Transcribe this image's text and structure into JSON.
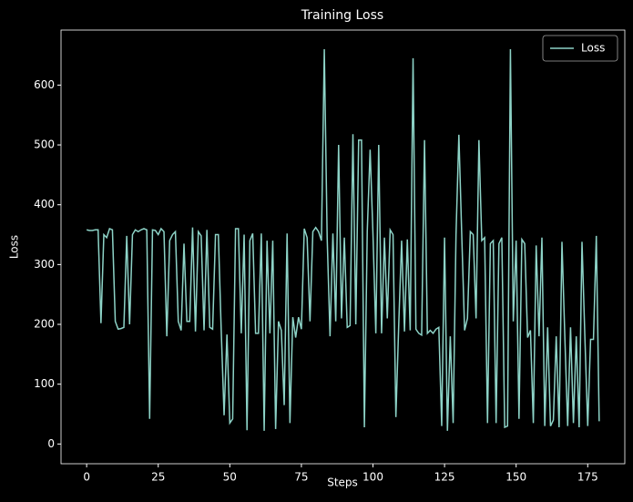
{
  "chart_data": {
    "type": "line",
    "title": "Training Loss",
    "x_label": "Steps",
    "y_label": "Loss",
    "x": [
      0,
      1,
      2,
      3,
      4,
      5,
      6,
      7,
      8,
      9,
      10,
      11,
      12,
      13,
      14,
      15,
      16,
      17,
      18,
      19,
      20,
      21,
      22,
      23,
      24,
      25,
      26,
      27,
      28,
      29,
      30,
      31,
      32,
      33,
      34,
      35,
      36,
      37,
      38,
      39,
      40,
      41,
      42,
      43,
      44,
      45,
      46,
      47,
      48,
      49,
      50,
      51,
      52,
      53,
      54,
      55,
      56,
      57,
      58,
      59,
      60,
      61,
      62,
      63,
      64,
      65,
      66,
      67,
      68,
      69,
      70,
      71,
      72,
      73,
      74,
      75,
      76,
      77,
      78,
      79,
      80,
      81,
      82,
      83,
      84,
      85,
      86,
      87,
      88,
      89,
      90,
      91,
      92,
      93,
      94,
      95,
      96,
      97,
      98,
      99,
      100,
      101,
      102,
      103,
      104,
      105,
      106,
      107,
      108,
      109,
      110,
      111,
      112,
      113,
      114,
      115,
      116,
      117,
      118,
      119,
      120,
      121,
      122,
      123,
      124,
      125,
      126,
      127,
      128,
      129,
      130,
      131,
      132,
      133,
      134,
      135,
      136,
      137,
      138,
      139,
      140,
      141,
      142,
      143,
      144,
      145,
      146,
      147,
      148,
      149,
      150,
      151,
      152,
      153,
      154,
      155,
      156,
      157,
      158,
      159,
      160,
      161,
      162,
      163,
      164,
      165,
      166,
      167,
      168,
      169,
      170,
      171,
      172,
      173,
      174,
      175,
      176,
      177,
      178,
      179
    ],
    "series": [
      {
        "name": "Loss",
        "color": "#8dd3c7",
        "values": [
          358,
          357,
          357,
          358,
          358,
          202,
          350,
          345,
          360,
          358,
          205,
          192,
          193,
          195,
          348,
          200,
          350,
          358,
          355,
          358,
          360,
          358,
          42,
          358,
          357,
          350,
          360,
          355,
          180,
          340,
          350,
          355,
          205,
          190,
          335,
          205,
          205,
          362,
          188,
          355,
          348,
          190,
          358,
          195,
          192,
          350,
          350,
          190,
          48,
          183,
          35,
          42,
          360,
          360,
          185,
          350,
          23,
          340,
          352,
          185,
          185,
          352,
          22,
          340,
          185,
          340,
          25,
          205,
          190,
          65,
          352,
          35,
          212,
          178,
          212,
          192,
          360,
          345,
          205,
          355,
          362,
          355,
          340,
          660,
          345,
          180,
          352,
          205,
          500,
          210,
          345,
          195,
          198,
          518,
          200,
          508,
          508,
          28,
          355,
          492,
          350,
          185,
          500,
          185,
          345,
          210,
          358,
          350,
          45,
          200,
          340,
          188,
          342,
          190,
          645,
          192,
          185,
          182,
          508,
          185,
          190,
          185,
          192,
          195,
          30,
          345,
          22,
          180,
          35,
          350,
          517,
          350,
          190,
          210,
          355,
          350,
          210,
          508,
          340,
          345,
          35,
          335,
          340,
          35,
          335,
          345,
          28,
          30,
          660,
          205,
          340,
          42,
          342,
          335,
          178,
          190,
          35,
          332,
          180,
          345,
          30,
          195,
          30,
          40,
          180,
          28,
          338,
          180,
          30,
          195,
          35,
          180,
          28,
          338,
          180,
          30,
          175,
          175,
          348,
          38
        ]
      }
    ],
    "xlim": [
      -8.95,
      187.95
    ],
    "ylim": [
      -33,
      692
    ],
    "xticks": [
      0,
      25,
      50,
      75,
      100,
      125,
      150,
      175
    ],
    "yticks": [
      0,
      100,
      200,
      300,
      400,
      500,
      600
    ],
    "legend": "upper right"
  }
}
